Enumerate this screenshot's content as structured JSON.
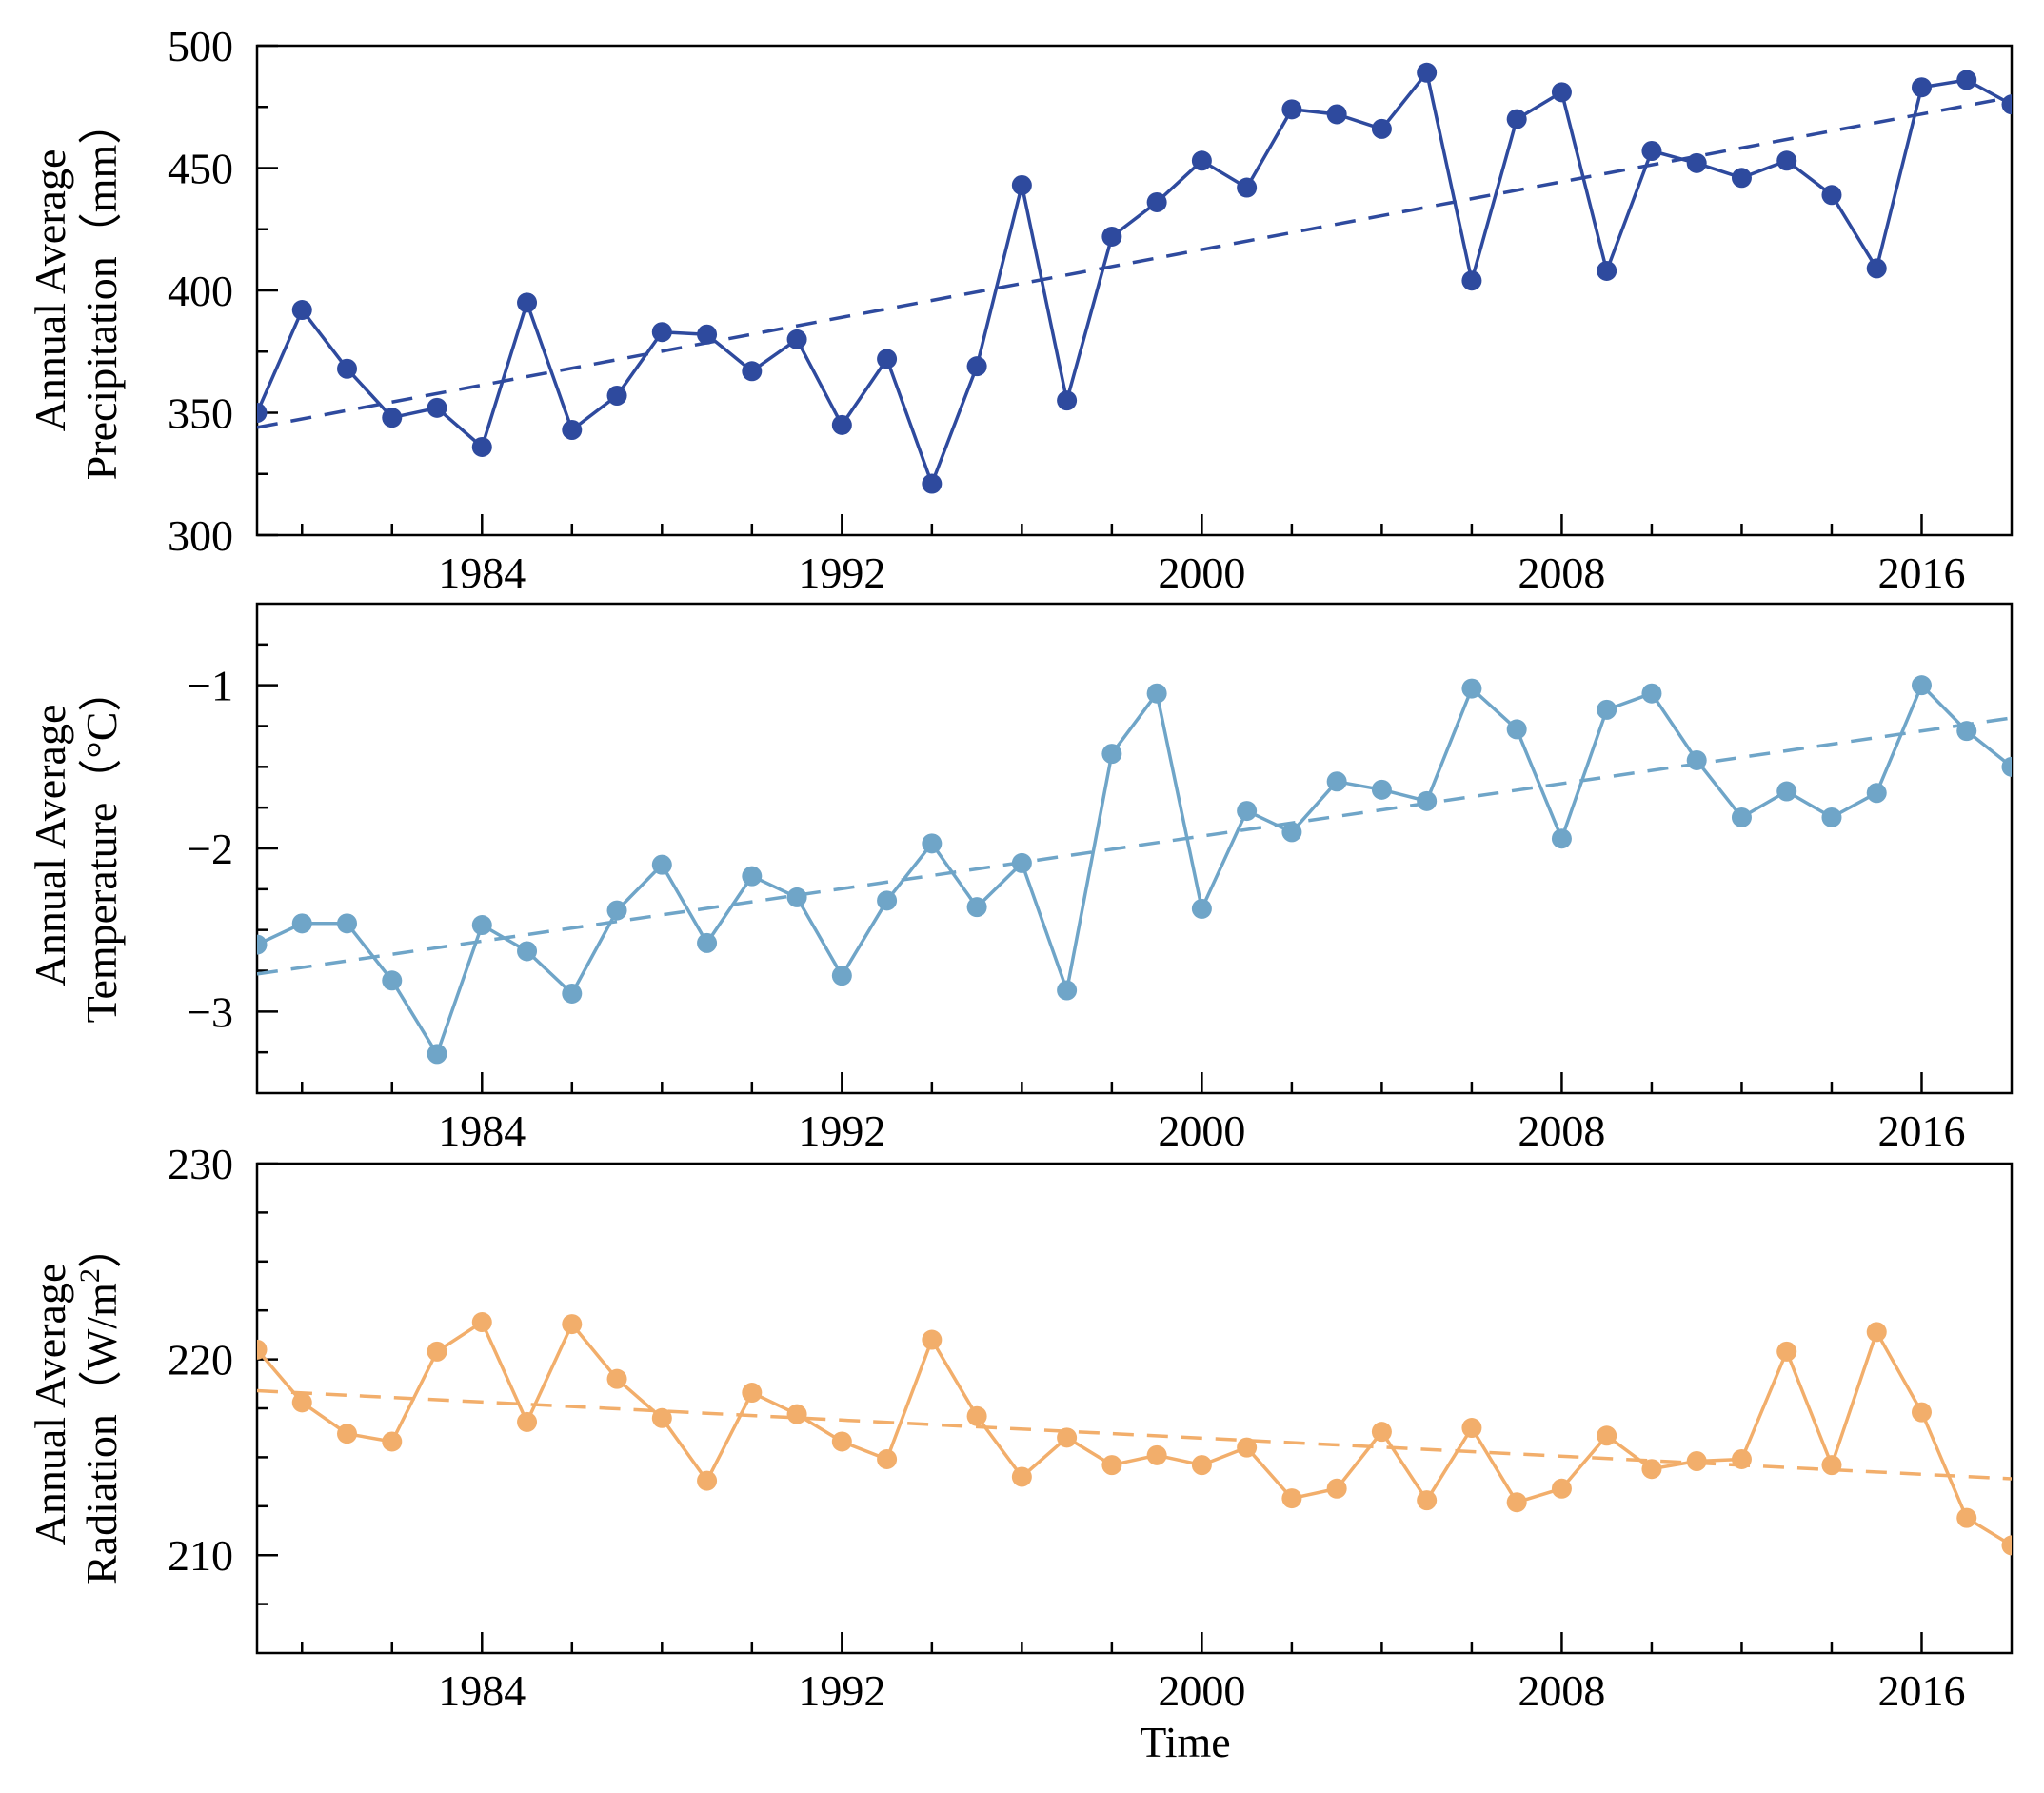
{
  "chart_data": [
    {
      "type": "line",
      "name": "precipitation",
      "ylabel_lines": [
        "Annual Average",
        "Precipitation（mm）"
      ],
      "ylim": [
        300,
        500
      ],
      "yticks": [
        300,
        350,
        400,
        450,
        500
      ],
      "ytick_labels": [
        "300",
        "350",
        "400",
        "450",
        "500"
      ],
      "xlim": [
        1979,
        2018
      ],
      "xticks_labeled": [
        1984,
        1992,
        2000,
        2008,
        2016
      ],
      "xtick_labels": [
        "1984",
        "1992",
        "2000",
        "2008",
        "2016"
      ],
      "color": "#2e4a9e",
      "series": [
        {
          "name": "Annual Average Precipitation",
          "x": [
            1979,
            1980,
            1981,
            1982,
            1983,
            1984,
            1985,
            1986,
            1987,
            1988,
            1989,
            1990,
            1991,
            1992,
            1993,
            1994,
            1995,
            1996,
            1997,
            1998,
            1999,
            2000,
            2001,
            2002,
            2003,
            2004,
            2005,
            2006,
            2007,
            2008,
            2009,
            2010,
            2011,
            2012,
            2013,
            2014,
            2015,
            2016,
            2017,
            2018
          ],
          "values": [
            350,
            392,
            368,
            348,
            352,
            336,
            395,
            343,
            357,
            383,
            382,
            367,
            380,
            345,
            372,
            321,
            369,
            443,
            355,
            422,
            436,
            453,
            442,
            474,
            472,
            466,
            489,
            404,
            470,
            481,
            408,
            457,
            452,
            446,
            453,
            439,
            409,
            483,
            486,
            476
          ]
        }
      ],
      "trend": {
        "x": [
          1979,
          2018
        ],
        "y": [
          344,
          479
        ]
      }
    },
    {
      "type": "line",
      "name": "temperature",
      "ylabel_lines": [
        "Annual Average",
        "Temperature（°C）"
      ],
      "ylim": [
        -3.5,
        -0.5
      ],
      "yticks": [
        -3,
        -2,
        -1
      ],
      "ytick_labels": [
        "−3",
        "−2",
        "−1"
      ],
      "xlim": [
        1979,
        2018
      ],
      "xticks_labeled": [
        1984,
        1992,
        2000,
        2008,
        2016
      ],
      "xtick_labels": [
        "1984",
        "1992",
        "2000",
        "2008",
        "2016"
      ],
      "color": "#6fa5c8",
      "series": [
        {
          "name": "Annual Average Temperature",
          "x": [
            1979,
            1980,
            1981,
            1982,
            1983,
            1984,
            1985,
            1986,
            1987,
            1988,
            1989,
            1990,
            1991,
            1992,
            1993,
            1994,
            1995,
            1996,
            1997,
            1998,
            1999,
            2000,
            2001,
            2002,
            2003,
            2004,
            2005,
            2006,
            2007,
            2008,
            2009,
            2010,
            2011,
            2012,
            2013,
            2014,
            2015,
            2016,
            2017,
            2018
          ],
          "values": [
            -2.59,
            -2.46,
            -2.46,
            -2.81,
            -3.26,
            -2.47,
            -2.63,
            -2.89,
            -2.38,
            -2.1,
            -2.58,
            -2.17,
            -2.3,
            -2.78,
            -2.32,
            -1.97,
            -2.36,
            -2.09,
            -2.87,
            -1.42,
            -1.05,
            -2.37,
            -1.77,
            -1.9,
            -1.59,
            -1.64,
            -1.71,
            -1.02,
            -1.27,
            -1.94,
            -1.15,
            -1.05,
            -1.46,
            -1.81,
            -1.65,
            -1.81,
            -1.66,
            -1.0,
            -1.28,
            -1.5
          ]
        }
      ],
      "trend": {
        "x": [
          1979,
          2018
        ],
        "y": [
          -2.77,
          -1.2
        ]
      }
    },
    {
      "type": "line",
      "name": "radiation",
      "ylabel_line1": "Annual Average",
      "ylabel_line2_base": "Radiation（W/m",
      "ylabel_line2_sup": "2",
      "ylabel_line2_end": "）",
      "ylim": [
        205,
        230
      ],
      "yticks": [
        210,
        220,
        230
      ],
      "ytick_labels": [
        "210",
        "220",
        "230"
      ],
      "xlim": [
        1979,
        2018
      ],
      "xticks_labeled": [
        1984,
        1992,
        2000,
        2008,
        2016
      ],
      "xtick_labels": [
        "1984",
        "1992",
        "2000",
        "2008",
        "2016"
      ],
      "xlabel": "Time",
      "color": "#f2ae6b",
      "series": [
        {
          "name": "Annual Average Radiation",
          "x": [
            1979,
            1980,
            1981,
            1982,
            1983,
            1984,
            1985,
            1986,
            1987,
            1988,
            1989,
            1990,
            1991,
            1992,
            1993,
            1994,
            1995,
            1996,
            1997,
            1998,
            1999,
            2000,
            2001,
            2002,
            2003,
            2004,
            2005,
            2006,
            2007,
            2008,
            2009,
            2010,
            2011,
            2012,
            2013,
            2014,
            2015,
            2016,
            2017,
            2018
          ],
          "values": [
            220.5,
            217.8,
            216.2,
            215.8,
            220.4,
            221.9,
            216.8,
            221.8,
            219.0,
            217.0,
            213.8,
            218.3,
            217.2,
            215.8,
            214.9,
            221.0,
            217.1,
            214.0,
            216.0,
            214.6,
            215.1,
            214.6,
            215.5,
            212.9,
            213.4,
            216.3,
            212.8,
            216.5,
            212.7,
            213.4,
            216.1,
            214.4,
            214.8,
            214.9,
            220.4,
            214.6,
            221.4,
            217.3,
            211.9,
            210.5
          ]
        }
      ],
      "trend": {
        "x": [
          1979,
          2018
        ],
        "y": [
          218.4,
          213.9
        ]
      }
    }
  ]
}
